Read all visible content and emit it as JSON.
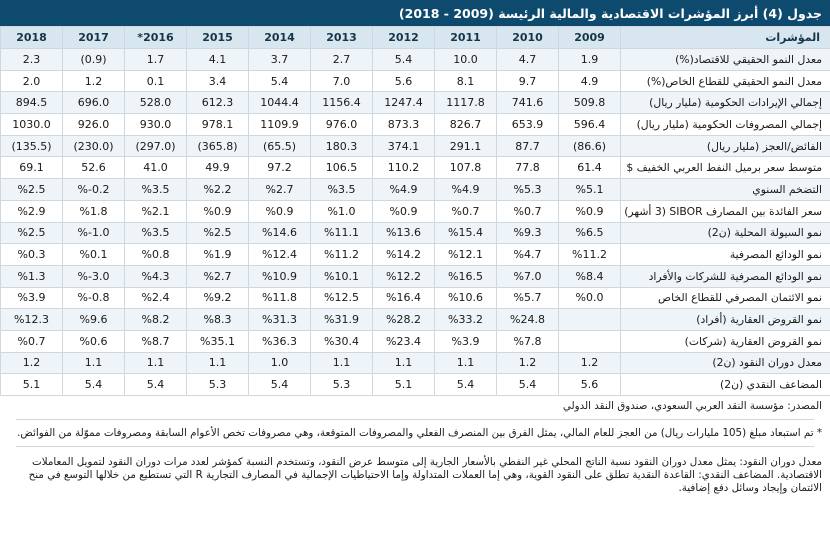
{
  "title": "جدول (4) أبرز المؤشرات الاقتصادية والمالية الرئيسة (2009 - 2018)",
  "header": {
    "label": "المؤشرات",
    "years": [
      "2009",
      "2010",
      "2011",
      "2012",
      "2013",
      "2014",
      "2015",
      "2016*",
      "2017",
      "2018"
    ]
  },
  "rows": [
    {
      "label": "معدل النمو الحقيقي للاقتصاد(%)",
      "values": [
        "1.9",
        "4.7",
        "10.0",
        "5.4",
        "2.7",
        "3.7",
        "4.1",
        "1.7",
        "(0.9)",
        "2.3"
      ]
    },
    {
      "label": "معدل النمو الحقيقي للقطاع الخاص(%)",
      "values": [
        "4.9",
        "9.7",
        "8.1",
        "5.6",
        "7.0",
        "5.4",
        "3.4",
        "0.1",
        "1.2",
        "2.0"
      ]
    },
    {
      "label": "إجمالي الإيرادات الحكومية (مليار ريال)",
      "values": [
        "509.8",
        "741.6",
        "1117.8",
        "1247.4",
        "1156.4",
        "1044.4",
        "612.3",
        "528.0",
        "696.0",
        "894.5"
      ]
    },
    {
      "label": "إجمالي المصروفات الحكومية (مليار ريال)",
      "values": [
        "596.4",
        "653.9",
        "826.7",
        "873.3",
        "976.0",
        "1109.9",
        "978.1",
        "930.0",
        "926.0",
        "1030.0"
      ]
    },
    {
      "label": "الفائض/العجز (مليار ريال)",
      "values": [
        "(86.6)",
        "87.7",
        "291.1",
        "374.1",
        "180.3",
        "(65.5)",
        "(365.8)",
        "(297.0)",
        "(230.0)",
        "(135.5)"
      ]
    },
    {
      "label": "متوسط سعر برميل النفط العربي الخفيف $",
      "values": [
        "61.4",
        "77.8",
        "107.8",
        "110.2",
        "106.5",
        "97.2",
        "49.9",
        "41.0",
        "52.6",
        "69.1"
      ]
    },
    {
      "label": "التضخم السنوي",
      "values": [
        "%5.1",
        "%5.3",
        "%4.9",
        "%4.9",
        "%3.5",
        "%2.7",
        "%2.2",
        "%3.5",
        "%-0.2",
        "%2.5"
      ]
    },
    {
      "label": "سعر الفائدة بين المصارف SIBOR (3 أشهر)",
      "values": [
        "%0.9",
        "%0.7",
        "%0.7",
        "%0.9",
        "%1.0",
        "%0.9",
        "%0.9",
        "%2.1",
        "%1.8",
        "%2.9"
      ]
    },
    {
      "label": "نمو السيولة المحلية (ن2)",
      "values": [
        "%6.5",
        "%9.3",
        "%15.4",
        "%13.6",
        "%11.1",
        "%14.6",
        "%2.5",
        "%3.5",
        "%-1.0",
        "%2.5"
      ]
    },
    {
      "label": "نمو الودائع المصرفية",
      "values": [
        "%11.2",
        "%4.7",
        "%12.1",
        "%14.2",
        "%11.2",
        "%12.4",
        "%1.9",
        "%0.8",
        "%0.1",
        "%0.3"
      ]
    },
    {
      "label": "نمو الودائع المصرفية للشركات والأفراد",
      "values": [
        "%8.4",
        "%7.0",
        "%16.5",
        "%12.2",
        "%10.1",
        "%10.9",
        "%2.7",
        "%4.3",
        "%-3.0",
        "%1.3"
      ]
    },
    {
      "label": "نمو الائتمان المصرفي للقطاع الخاص",
      "values": [
        "%0.0",
        "%5.7",
        "%10.6",
        "%16.4",
        "%12.5",
        "%11.8",
        "%9.2",
        "%2.4",
        "%-0.8",
        "%3.9"
      ]
    },
    {
      "label": "نمو القروض العقارية (أفراد)",
      "values": [
        "",
        "%24.8",
        "%33.2",
        "%28.2",
        "%31.9",
        "%31.3",
        "%8.3",
        "%8.2",
        "%9.6",
        "%12.3"
      ]
    },
    {
      "label": "نمو القروض العقارية (شركات)",
      "values": [
        "",
        "%7.8",
        "%3.9",
        "%23.4",
        "%30.4",
        "%36.3",
        "%35.1",
        "%8.7",
        "%0.6",
        "%0.7"
      ]
    },
    {
      "label": "معدل دوران النقود (ن2)",
      "values": [
        "1.2",
        "1.2",
        "1.1",
        "1.1",
        "1.1",
        "1.0",
        "1.1",
        "1.1",
        "1.1",
        "1.2"
      ]
    },
    {
      "label": "المضاعف النقدي (ن2)",
      "values": [
        "5.6",
        "5.4",
        "5.4",
        "5.1",
        "5.3",
        "5.4",
        "5.3",
        "5.4",
        "5.4",
        "5.1"
      ]
    }
  ],
  "notes": {
    "source": "المصدر: مؤسسة النقد العربي السعودي، صندوق النقد الدولي",
    "star": "* تم استبعاد مبلغ (105 مليارات ريال) من العجز للعام المالي، يمثل الفرق بين المنصرف الفعلي والمصروفات المتوقعة، وهي مصروفات تخص الأعوام السابقة ومصروفات مموّلة من الفوائض.",
    "definition": "معدل دوران النقود: يمثل معدل دوران النقود نسبة الناتج المحلي غير النفطي بالأسعار الجارية إلى متوسط عرض النقود، وتستخدم النسبة كمؤشر لعدد مرات دوران النقود لتمويل المعاملات الاقتصادية. المضاعف النقدي: القاعدة النقدية تطلق على النقود القوية، وهي إما العملات المتداولة وإما الاحتياطيات الإجمالية في المصارف التجارية R التي تستطيع من خلالها التوسع في منح الائتمان وإيجاد وسائل دفع إضافية."
  }
}
